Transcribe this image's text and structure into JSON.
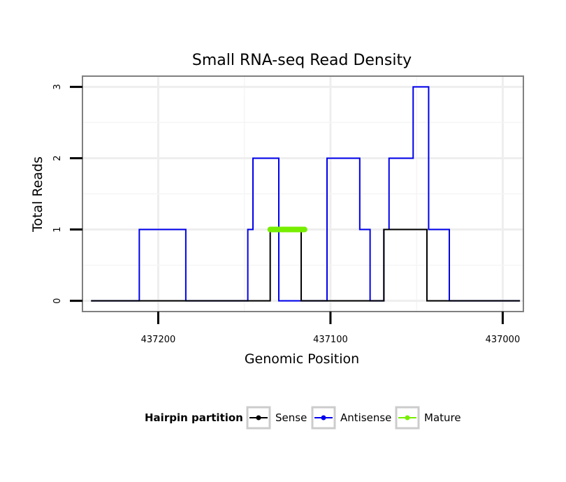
{
  "chart_data": {
    "type": "line",
    "title": "Small RNA-seq Read Density",
    "xlabel": "Genomic Position",
    "ylabel": "Total Reads",
    "xlim": [
      437244,
      436988
    ],
    "ylim": [
      -0.15,
      3.15
    ],
    "x_reversed": true,
    "x_ticks": [
      437200,
      437100,
      437000
    ],
    "x_tick_labels": [
      "437200",
      "437100",
      "437000"
    ],
    "y_ticks": [
      0,
      1,
      2,
      3
    ],
    "y_tick_labels": [
      "0",
      "1",
      "2",
      "3"
    ],
    "grid": true,
    "legend": {
      "title": "Hairpin partition",
      "position": "bottom",
      "entries": [
        "Sense",
        "Antisense",
        "Mature"
      ]
    },
    "series": [
      {
        "name": "Antisense",
        "color": "#0000ee",
        "points": [
          [
            437239,
            0
          ],
          [
            437211,
            0
          ],
          [
            437211,
            1
          ],
          [
            437184,
            1
          ],
          [
            437184,
            0
          ],
          [
            437148,
            0
          ],
          [
            437148,
            1
          ],
          [
            437145,
            1
          ],
          [
            437145,
            2
          ],
          [
            437130,
            2
          ],
          [
            437130,
            0
          ],
          [
            437102,
            0
          ],
          [
            437102,
            2
          ],
          [
            437083,
            2
          ],
          [
            437083,
            1
          ],
          [
            437077,
            1
          ],
          [
            437077,
            0
          ],
          [
            437069,
            0
          ],
          [
            437069,
            1
          ],
          [
            437066,
            1
          ],
          [
            437066,
            2
          ],
          [
            437052,
            2
          ],
          [
            437052,
            3
          ],
          [
            437043,
            3
          ],
          [
            437043,
            1
          ],
          [
            437031,
            1
          ],
          [
            437031,
            0
          ],
          [
            436990,
            0
          ]
        ]
      },
      {
        "name": "Sense",
        "color": "#000000",
        "points": [
          [
            437239,
            0
          ],
          [
            437135,
            0
          ],
          [
            437135,
            1
          ],
          [
            437117,
            1
          ],
          [
            437117,
            0
          ],
          [
            437069,
            0
          ],
          [
            437069,
            1
          ],
          [
            437044,
            1
          ],
          [
            437044,
            0
          ],
          [
            436990,
            0
          ]
        ]
      },
      {
        "name": "Mature",
        "color": "#77ee00",
        "points": [
          [
            437135,
            1
          ],
          [
            437115,
            1
          ]
        ]
      }
    ]
  }
}
